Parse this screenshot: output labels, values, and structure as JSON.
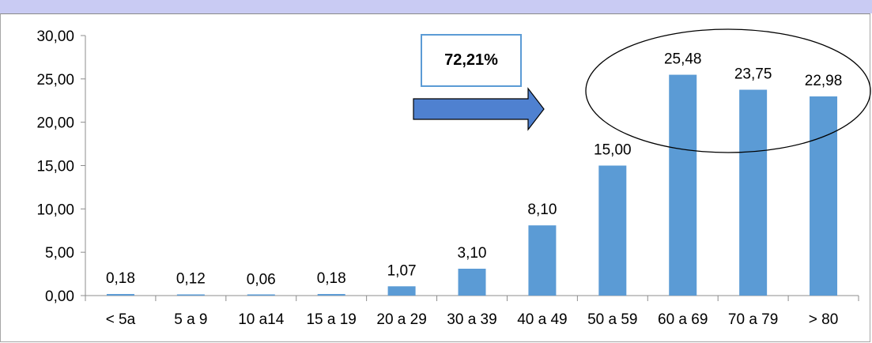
{
  "colors": {
    "bar": "#5b9bd5",
    "arrow": "#4f81d0",
    "top_band": "#c9cbf3",
    "axis": "#8c8c8c"
  },
  "callout": {
    "text": "72,21%"
  },
  "chart_data": {
    "type": "bar",
    "categories": [
      "< 5a",
      "5 a 9",
      "10 a14",
      "15 a 19",
      "20 a 29",
      "30 a 39",
      "40 a 49",
      "50 a 59",
      "60 a 69",
      "70 a 79",
      "> 80"
    ],
    "values": [
      0.18,
      0.12,
      0.06,
      0.18,
      1.07,
      3.1,
      8.1,
      15.0,
      25.48,
      23.75,
      22.98
    ],
    "value_labels": [
      "0,18",
      "0,12",
      "0,06",
      "0,18",
      "1,07",
      "3,10",
      "8,10",
      "15,00",
      "25,48",
      "23,75",
      "22,98"
    ],
    "y_ticks": [
      "0,00",
      "5,00",
      "10,00",
      "15,00",
      "20,00",
      "25,00",
      "30,00"
    ],
    "ylim": [
      0,
      30
    ],
    "grid": false,
    "legend": "none",
    "annotations": [
      "72,21%",
      "arrow pointing right",
      "ellipse around 60 a 69, 70 a 79, > 80"
    ]
  }
}
